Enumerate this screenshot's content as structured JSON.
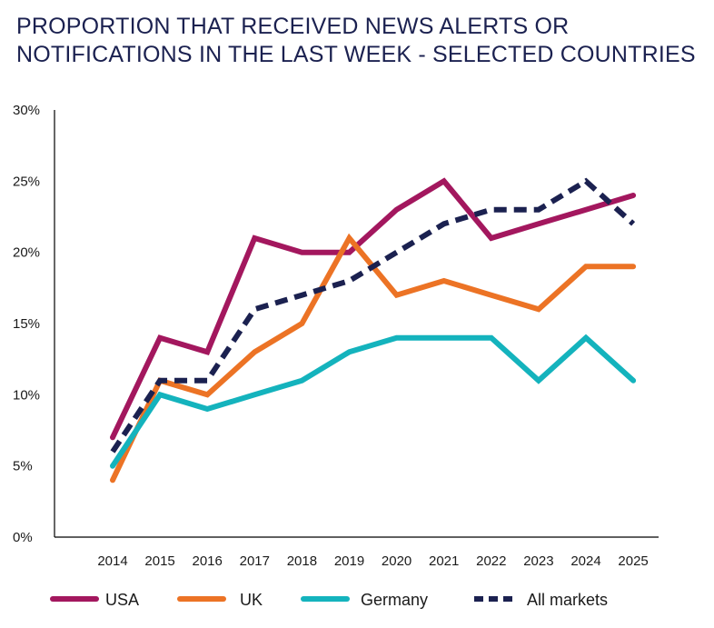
{
  "chart_data": {
    "type": "line",
    "title_lines": [
      "PROPORTION THAT RECEIVED NEWS ALERTS OR",
      "NOTIFICATIONS IN THE LAST WEEK - SELECTED COUNTRIES"
    ],
    "xlabel": "",
    "ylabel": "",
    "x": [
      "2014",
      "2015",
      "2016",
      "2017",
      "2018",
      "2019",
      "2020",
      "2021",
      "2022",
      "2023",
      "2024",
      "2025"
    ],
    "ylim": [
      0,
      30
    ],
    "yticks": [
      0,
      5,
      10,
      15,
      20,
      25,
      30
    ],
    "ytick_labels": [
      "0%",
      "5%",
      "10%",
      "15%",
      "20%",
      "25%",
      "30%"
    ],
    "grid": false,
    "legend_position": "bottom",
    "series": [
      {
        "name": "USA",
        "color": "#a3175e",
        "style": "solid",
        "values": [
          7,
          14,
          13,
          21,
          20,
          20,
          23,
          25,
          21,
          22,
          23,
          24
        ]
      },
      {
        "name": "UK",
        "color": "#ec7325",
        "style": "solid",
        "values": [
          4,
          11,
          10,
          13,
          15,
          21,
          17,
          18,
          17,
          16,
          19,
          19
        ]
      },
      {
        "name": "Germany",
        "color": "#14b3bd",
        "style": "solid",
        "values": [
          5,
          10,
          9,
          10,
          11,
          13,
          14,
          14,
          14,
          11,
          14,
          11
        ]
      },
      {
        "name": "All markets",
        "color": "#1b2150",
        "style": "dashed",
        "values": [
          6,
          11,
          11,
          16,
          17,
          18,
          20,
          22,
          23,
          23,
          25,
          22
        ]
      }
    ]
  }
}
